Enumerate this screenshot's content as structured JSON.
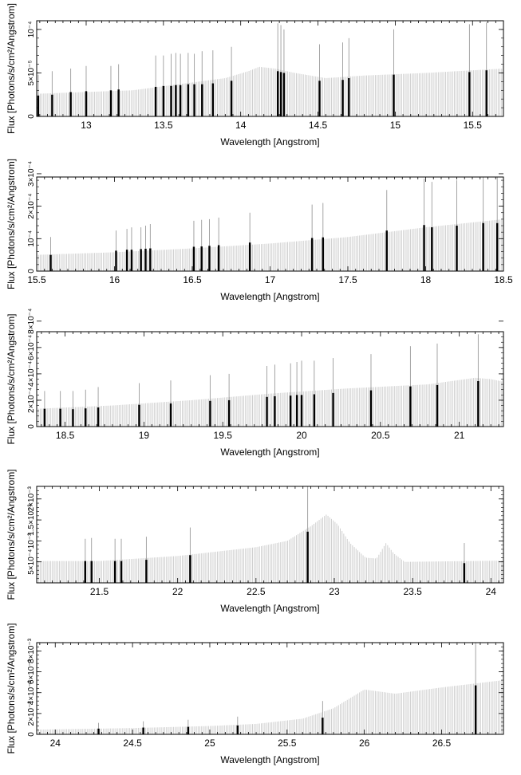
{
  "colors": {
    "background": "#ffffff",
    "axis": "#000000",
    "model": "#cfcfcf",
    "line": "#000000",
    "error": "#9a9a9a"
  },
  "chart_data": [
    {
      "type": "bar",
      "xlabel": "Wavelength [Angstrom]",
      "ylabel": "Flux [Photons/s/cm²/Angstrom]",
      "xlim": [
        12.68,
        15.7
      ],
      "ylim": [
        0,
        0.00011
      ],
      "xticks": [
        {
          "v": 13,
          "label": "13"
        },
        {
          "v": 13.5,
          "label": "13.5"
        },
        {
          "v": 14,
          "label": "14"
        },
        {
          "v": 14.5,
          "label": "14.5"
        },
        {
          "v": 15,
          "label": "15"
        },
        {
          "v": 15.5,
          "label": "15.5"
        }
      ],
      "yticks": [
        {
          "v": 0,
          "label": "0"
        },
        {
          "v": 5e-05,
          "label": "5×10⁻⁵"
        },
        {
          "v": 0.0001,
          "label": "10⁻⁴"
        }
      ],
      "continuum": [
        [
          12.68,
          2.6e-05
        ],
        [
          13.3,
          3e-05
        ],
        [
          13.9,
          4.4e-05
        ],
        [
          14.05,
          5.2e-05
        ],
        [
          14.12,
          5.7e-05
        ],
        [
          14.22,
          5.5e-05
        ],
        [
          14.35,
          5e-05
        ],
        [
          14.55,
          4.4e-05
        ],
        [
          14.8,
          4.7e-05
        ],
        [
          15.2,
          5e-05
        ],
        [
          15.7,
          5.5e-05
        ]
      ],
      "lines": [
        {
          "x": 12.69,
          "y": 2.4e-05,
          "err": 4.8e-05
        },
        {
          "x": 12.78,
          "y": 2.5e-05,
          "err": 5.2e-05
        },
        {
          "x": 12.9,
          "y": 2.8e-05,
          "err": 5.5e-05
        },
        {
          "x": 13.0,
          "y": 2.9e-05,
          "err": 5.8e-05
        },
        {
          "x": 13.16,
          "y": 3e-05,
          "err": 5.8e-05
        },
        {
          "x": 13.21,
          "y": 3.1e-05,
          "err": 6e-05
        },
        {
          "x": 13.45,
          "y": 3.4e-05,
          "err": 7e-05
        },
        {
          "x": 13.5,
          "y": 3.5e-05,
          "err": 7e-05
        },
        {
          "x": 13.55,
          "y": 3.5e-05,
          "err": 7.2e-05
        },
        {
          "x": 13.58,
          "y": 3.6e-05,
          "err": 7.3e-05
        },
        {
          "x": 13.61,
          "y": 3.6e-05,
          "err": 7.2e-05
        },
        {
          "x": 13.66,
          "y": 3.7e-05,
          "err": 7.3e-05
        },
        {
          "x": 13.7,
          "y": 3.7e-05,
          "err": 7.2e-05
        },
        {
          "x": 13.75,
          "y": 3.7e-05,
          "err": 7.5e-05
        },
        {
          "x": 13.82,
          "y": 3.8e-05,
          "err": 7.6e-05
        },
        {
          "x": 13.94,
          "y": 4.1e-05,
          "err": 8e-05
        },
        {
          "x": 14.24,
          "y": 5.2e-05,
          "err": 0.000107
        },
        {
          "x": 14.26,
          "y": 5.1e-05,
          "err": 0.000105
        },
        {
          "x": 14.28,
          "y": 5e-05,
          "err": 0.0001
        },
        {
          "x": 14.51,
          "y": 4.1e-05,
          "err": 8.3e-05
        },
        {
          "x": 14.66,
          "y": 4.2e-05,
          "err": 8.5e-05
        },
        {
          "x": 14.7,
          "y": 4.4e-05,
          "err": 9e-05
        },
        {
          "x": 14.99,
          "y": 4.8e-05,
          "err": 0.0001
        },
        {
          "x": 15.48,
          "y": 5.1e-05,
          "err": 0.000106
        },
        {
          "x": 15.59,
          "y": 5.3e-05,
          "err": 0.000108
        }
      ]
    },
    {
      "type": "bar",
      "xlabel": "Wavelength [Angstrom]",
      "ylabel": "Flux [Photons/s/cm²/Angstrom]",
      "xlim": [
        15.5,
        18.5
      ],
      "ylim": [
        0,
        0.00029
      ],
      "xticks": [
        {
          "v": 15.5,
          "label": "15.5"
        },
        {
          "v": 16,
          "label": "16"
        },
        {
          "v": 16.5,
          "label": "16.5"
        },
        {
          "v": 17,
          "label": "17"
        },
        {
          "v": 17.5,
          "label": "17.5"
        },
        {
          "v": 18,
          "label": "18"
        },
        {
          "v": 18.5,
          "label": "18.5"
        }
      ],
      "yticks": [
        {
          "v": 0,
          "label": "0"
        },
        {
          "v": 0.0001,
          "label": "10⁻⁴"
        },
        {
          "v": 0.0002,
          "label": "2×10⁻⁴"
        },
        {
          "v": 0.0003,
          "label": "3×10⁻⁴"
        }
      ],
      "continuum": [
        [
          15.5,
          5e-05
        ],
        [
          16.0,
          5.8e-05
        ],
        [
          16.5,
          7e-05
        ],
        [
          17.0,
          8.5e-05
        ],
        [
          17.5,
          0.000105
        ],
        [
          18.0,
          0.000135
        ],
        [
          18.5,
          0.00016
        ]
      ],
      "lines": [
        {
          "x": 15.59,
          "y": 5e-05,
          "err": 0.000105
        },
        {
          "x": 16.01,
          "y": 6.3e-05,
          "err": 0.000125
        },
        {
          "x": 16.08,
          "y": 6.6e-05,
          "err": 0.00013
        },
        {
          "x": 16.11,
          "y": 6.6e-05,
          "err": 0.000135
        },
        {
          "x": 16.17,
          "y": 6.8e-05,
          "err": 0.000135
        },
        {
          "x": 16.2,
          "y": 6.9e-05,
          "err": 0.00014
        },
        {
          "x": 16.23,
          "y": 7e-05,
          "err": 0.000145
        },
        {
          "x": 16.51,
          "y": 7.5e-05,
          "err": 0.000155
        },
        {
          "x": 16.56,
          "y": 7.6e-05,
          "err": 0.000158
        },
        {
          "x": 16.61,
          "y": 7.8e-05,
          "err": 0.00016
        },
        {
          "x": 16.67,
          "y": 8e-05,
          "err": 0.000165
        },
        {
          "x": 16.87,
          "y": 8.8e-05,
          "err": 0.00018
        },
        {
          "x": 17.27,
          "y": 0.000102,
          "err": 0.000205
        },
        {
          "x": 17.34,
          "y": 0.000104,
          "err": 0.00021
        },
        {
          "x": 17.75,
          "y": 0.000125,
          "err": 0.00025
        },
        {
          "x": 17.99,
          "y": 0.000142,
          "err": 0.000285
        },
        {
          "x": 18.04,
          "y": 0.000135,
          "err": 0.000275
        },
        {
          "x": 18.2,
          "y": 0.00014,
          "err": 0.00028
        },
        {
          "x": 18.37,
          "y": 0.000148,
          "err": 0.000295
        },
        {
          "x": 18.46,
          "y": 0.000148,
          "err": 0.000295
        }
      ]
    },
    {
      "type": "bar",
      "xlabel": "Wavelength [Angstrom]",
      "ylabel": "Flux [Photons/s/cm²/Angstrom]",
      "xlim": [
        18.32,
        21.28
      ],
      "ylim": [
        0,
        0.00072
      ],
      "xticks": [
        {
          "v": 18.5,
          "label": "18.5"
        },
        {
          "v": 19,
          "label": "19"
        },
        {
          "v": 19.5,
          "label": "19.5"
        },
        {
          "v": 20,
          "label": "20"
        },
        {
          "v": 20.5,
          "label": "20.5"
        },
        {
          "v": 21,
          "label": "21"
        }
      ],
      "yticks": [
        {
          "v": 0,
          "label": "0"
        },
        {
          "v": 0.0002,
          "label": "2×10⁻⁴"
        },
        {
          "v": 0.0004,
          "label": "4×10⁻⁴"
        },
        {
          "v": 0.0006,
          "label": "6×10⁻⁴"
        },
        {
          "v": 0.0008,
          "label": "8×10⁻⁴"
        }
      ],
      "continuum": [
        [
          18.32,
          0.000135
        ],
        [
          18.8,
          0.00016
        ],
        [
          19.3,
          0.0002
        ],
        [
          19.8,
          0.00025
        ],
        [
          20.3,
          0.00029
        ],
        [
          20.8,
          0.00032
        ],
        [
          21.1,
          0.00037
        ],
        [
          21.2,
          0.00036
        ],
        [
          21.28,
          0.00034
        ]
      ],
      "lines": [
        {
          "x": 18.37,
          "y": 0.000135,
          "err": 0.00027
        },
        {
          "x": 18.47,
          "y": 0.000135,
          "err": 0.00027
        },
        {
          "x": 18.55,
          "y": 0.000132,
          "err": 0.00027
        },
        {
          "x": 18.63,
          "y": 0.000138,
          "err": 0.00028
        },
        {
          "x": 18.71,
          "y": 0.000145,
          "err": 0.0003
        },
        {
          "x": 18.97,
          "y": 0.000165,
          "err": 0.00033
        },
        {
          "x": 19.17,
          "y": 0.000175,
          "err": 0.00035
        },
        {
          "x": 19.42,
          "y": 0.000195,
          "err": 0.00039
        },
        {
          "x": 19.54,
          "y": 0.0002,
          "err": 0.0004
        },
        {
          "x": 19.78,
          "y": 0.000225,
          "err": 0.00046
        },
        {
          "x": 19.83,
          "y": 0.00023,
          "err": 0.00047
        },
        {
          "x": 19.93,
          "y": 0.000235,
          "err": 0.00048
        },
        {
          "x": 19.97,
          "y": 0.00024,
          "err": 0.00049
        },
        {
          "x": 20.0,
          "y": 0.00024,
          "err": 0.0005
        },
        {
          "x": 20.08,
          "y": 0.000245,
          "err": 0.0005
        },
        {
          "x": 20.2,
          "y": 0.000255,
          "err": 0.00052
        },
        {
          "x": 20.44,
          "y": 0.000275,
          "err": 0.00055
        },
        {
          "x": 20.69,
          "y": 0.000305,
          "err": 0.00061
        },
        {
          "x": 20.86,
          "y": 0.000315,
          "err": 0.00063
        },
        {
          "x": 21.12,
          "y": 0.000345,
          "err": 0.0007
        }
      ]
    },
    {
      "type": "bar",
      "xlabel": "Wavelength [Angstrom]",
      "ylabel": "Flux [Photons/s/cm²/Angstrom]",
      "xlim": [
        21.1,
        24.08
      ],
      "ylim": [
        0,
        0.0023
      ],
      "xticks": [
        {
          "v": 21.5,
          "label": "21.5"
        },
        {
          "v": 22,
          "label": "22"
        },
        {
          "v": 22.5,
          "label": "22.5"
        },
        {
          "v": 23,
          "label": "23"
        },
        {
          "v": 23.5,
          "label": "23.5"
        },
        {
          "v": 24,
          "label": "24"
        }
      ],
      "yticks": [
        {
          "v": 0.0005,
          "label": "5×10⁻⁴"
        },
        {
          "v": 0.001,
          "label": "10⁻³"
        },
        {
          "v": 0.0015,
          "label": "1.5×10⁻³"
        },
        {
          "v": 0.002,
          "label": "2×10⁻³"
        }
      ],
      "continuum": [
        [
          21.1,
          0.00052
        ],
        [
          21.5,
          0.00052
        ],
        [
          22.0,
          0.00064
        ],
        [
          22.5,
          0.00085
        ],
        [
          22.7,
          0.001
        ],
        [
          22.85,
          0.00135
        ],
        [
          22.95,
          0.00163
        ],
        [
          23.02,
          0.0014
        ],
        [
          23.1,
          0.00095
        ],
        [
          23.2,
          0.0006
        ],
        [
          23.27,
          0.00058
        ],
        [
          23.33,
          0.00095
        ],
        [
          23.38,
          0.0007
        ],
        [
          23.45,
          0.0005
        ],
        [
          24.08,
          0.00053
        ]
      ],
      "lines": [
        {
          "x": 21.41,
          "y": 0.00052,
          "err": 0.00105
        },
        {
          "x": 21.45,
          "y": 0.00052,
          "err": 0.00107
        },
        {
          "x": 21.6,
          "y": 0.00052,
          "err": 0.00105
        },
        {
          "x": 21.64,
          "y": 0.00052,
          "err": 0.00105
        },
        {
          "x": 21.8,
          "y": 0.00055,
          "err": 0.0011
        },
        {
          "x": 22.08,
          "y": 0.00066,
          "err": 0.00132
        },
        {
          "x": 22.83,
          "y": 0.00122,
          "err": 0.0024
        },
        {
          "x": 23.83,
          "y": 0.00047,
          "err": 0.00095
        }
      ]
    },
    {
      "type": "bar",
      "xlabel": "Wavelength [Angstrom]",
      "ylabel": "Flux [Photons/s/cm²/Angstrom]",
      "xlim": [
        23.88,
        26.9
      ],
      "ylim": [
        0,
        0.0088
      ],
      "xticks": [
        {
          "v": 24,
          "label": "24"
        },
        {
          "v": 24.5,
          "label": "24.5"
        },
        {
          "v": 25,
          "label": "25"
        },
        {
          "v": 25.5,
          "label": "25.5"
        },
        {
          "v": 26,
          "label": "26"
        },
        {
          "v": 26.5,
          "label": "26.5"
        }
      ],
      "yticks": [
        {
          "v": 0,
          "label": "0"
        },
        {
          "v": 0.002,
          "label": "2×10⁻³"
        },
        {
          "v": 0.004,
          "label": "4×10⁻³"
        },
        {
          "v": 0.006,
          "label": "6×10⁻³"
        },
        {
          "v": 0.008,
          "label": "8×10⁻³"
        }
      ],
      "continuum": [
        [
          23.88,
          0.00045
        ],
        [
          24.5,
          0.0006
        ],
        [
          25.0,
          0.0008
        ],
        [
          25.3,
          0.001
        ],
        [
          25.6,
          0.0015
        ],
        [
          25.8,
          0.0025
        ],
        [
          26.0,
          0.0043
        ],
        [
          26.2,
          0.0039
        ],
        [
          26.5,
          0.0045
        ],
        [
          26.9,
          0.0052
        ]
      ],
      "lines": [
        {
          "x": 24.28,
          "y": 0.00055,
          "err": 0.0011
        },
        {
          "x": 24.57,
          "y": 0.00065,
          "err": 0.00125
        },
        {
          "x": 24.86,
          "y": 0.00072,
          "err": 0.0014
        },
        {
          "x": 25.18,
          "y": 0.00085,
          "err": 0.0017
        },
        {
          "x": 25.73,
          "y": 0.0016,
          "err": 0.0032
        },
        {
          "x": 26.72,
          "y": 0.0047,
          "err": 0.0094
        }
      ]
    }
  ]
}
